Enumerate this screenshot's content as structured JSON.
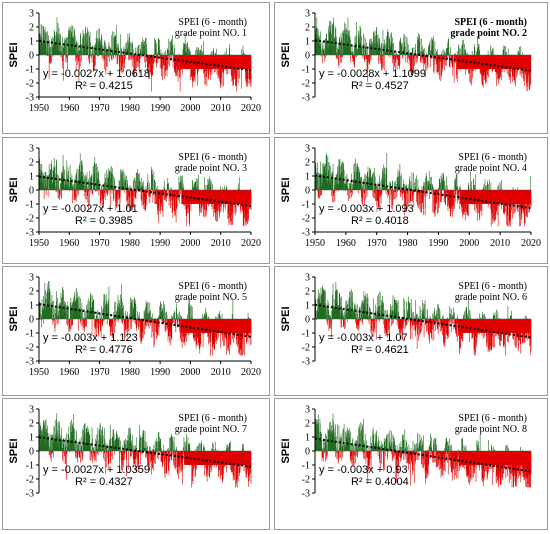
{
  "chart_data": [
    {
      "type": "bar",
      "title": "SPEI  (6 - month)",
      "subtitle": "grade point NO. 1",
      "title_bold": false,
      "ylabel": "SPEI",
      "ylim": [
        -3,
        3
      ],
      "yticks": [
        -3,
        -2,
        -1,
        0,
        1,
        2,
        3
      ],
      "xlim": [
        1950,
        2020
      ],
      "xticks": [
        1950,
        1960,
        1970,
        1980,
        1990,
        2000,
        2010,
        2020
      ],
      "grid": false,
      "trend": {
        "slope": -0.0027,
        "intercept": 1.0618
      },
      "equation": "y = -0.0027x + 1.0618",
      "r2": "R² = 0.4215",
      "colors": {
        "positive": "#1f6b1f",
        "negative": "#e00000",
        "trend": "#000000"
      },
      "series_wet_until": 1997
    },
    {
      "type": "bar",
      "title": "SPEI  (6 - month)",
      "subtitle": "grade point NO. 2",
      "title_bold": true,
      "ylabel": "SPEI",
      "ylim": [
        -3,
        3
      ],
      "yticks": [
        -3,
        -2,
        -1,
        0,
        1,
        2,
        3
      ],
      "xlim": [
        1950,
        2020
      ],
      "xticks": [],
      "grid": false,
      "trend": {
        "slope": -0.0028,
        "intercept": 1.1099
      },
      "equation": "y = -0.0028x + 1.1099",
      "r2": "R² = 0.4527",
      "colors": {
        "positive": "#1f6b1f",
        "negative": "#e00000",
        "trend": "#000000"
      },
      "series_wet_until": 1996
    },
    {
      "type": "bar",
      "title": "SPEI  (6 - month)",
      "subtitle": "grade point NO. 3",
      "title_bold": false,
      "ylabel": "SPEI",
      "ylim": [
        -3,
        3
      ],
      "yticks": [
        -3,
        -2,
        -1,
        0,
        1,
        2,
        3
      ],
      "xlim": [
        1950,
        2020
      ],
      "xticks": [
        1950,
        1960,
        1970,
        1980,
        1990,
        2000,
        2010,
        2020
      ],
      "grid": false,
      "trend": {
        "slope": -0.0027,
        "intercept": 1.01
      },
      "equation": "y = -0.0027x + 1.01",
      "r2": "R² = 0.3985",
      "colors": {
        "positive": "#1f6b1f",
        "negative": "#e00000",
        "trend": "#000000"
      },
      "series_wet_until": 1997
    },
    {
      "type": "bar",
      "title": "SPEI  (6 - month)",
      "subtitle": "grade point NO. 4",
      "title_bold": false,
      "ylabel": "SPEI",
      "ylim": [
        -3,
        3
      ],
      "yticks": [
        -3,
        -2,
        -1,
        0,
        1,
        2,
        3
      ],
      "xlim": [
        1950,
        2020
      ],
      "xticks": [
        1950,
        1960,
        1970,
        1980,
        1990,
        2000,
        2010,
        2020
      ],
      "grid": false,
      "trend": {
        "slope": -0.003,
        "intercept": 1.093
      },
      "equation": "y = -0.003x + 1.093",
      "r2": "R² = 0.4018",
      "colors": {
        "positive": "#1f6b1f",
        "negative": "#e00000",
        "trend": "#000000"
      },
      "series_wet_until": 1997
    },
    {
      "type": "bar",
      "title": "SPEI  (6 - month)",
      "subtitle": "grade point NO. 5",
      "title_bold": false,
      "ylabel": "SPEI",
      "ylim": [
        -3,
        3
      ],
      "yticks": [
        -3,
        -2,
        -1,
        0,
        1,
        2,
        3
      ],
      "xlim": [
        1950,
        2020
      ],
      "xticks": [
        1950,
        1960,
        1970,
        1980,
        1990,
        2000,
        2010,
        2020
      ],
      "grid": false,
      "trend": {
        "slope": -0.003,
        "intercept": 1.123
      },
      "equation": "y = -0.003x + 1.123",
      "r2": "R² = 0.4776",
      "colors": {
        "positive": "#1f6b1f",
        "negative": "#e00000",
        "trend": "#000000"
      },
      "series_wet_until": 1997
    },
    {
      "type": "bar",
      "title": "SPEI  (6 - month)",
      "subtitle": "grade point NO. 6",
      "title_bold": false,
      "ylabel": "SPEI",
      "ylim": [
        -3,
        3
      ],
      "yticks": [
        -3,
        -2,
        -1,
        0,
        1,
        2,
        3
      ],
      "xlim": [
        1950,
        2020
      ],
      "xticks": [],
      "grid": false,
      "trend": {
        "slope": -0.003,
        "intercept": 1.07
      },
      "equation": "y = -0.003x + 1.07",
      "r2": "R² = 0.4621",
      "colors": {
        "positive": "#1f6b1f",
        "negative": "#e00000",
        "trend": "#000000"
      },
      "series_wet_until": 1997
    },
    {
      "type": "bar",
      "title": "SPEI  (6 - month)",
      "subtitle": "grade point NO. 7",
      "title_bold": false,
      "ylabel": "SPEI",
      "ylim": [
        -3,
        3
      ],
      "yticks": [
        -3,
        -2,
        -1,
        0,
        1,
        2,
        3
      ],
      "xlim": [
        1950,
        2020
      ],
      "xticks": [],
      "grid": false,
      "trend": {
        "slope": -0.0027,
        "intercept": 1.0359
      },
      "equation": "y = -0.0027x + 1.0359",
      "r2": "R² = 0.4327",
      "colors": {
        "positive": "#1f6b1f",
        "negative": "#e00000",
        "trend": "#000000"
      },
      "series_wet_until": 1998
    },
    {
      "type": "bar",
      "title": "SPEI  (6 - month)",
      "subtitle": "grade point NO. 8",
      "title_bold": false,
      "ylabel": "SPEI",
      "ylim": [
        -3,
        3
      ],
      "yticks": [
        -3,
        -2,
        -1,
        0,
        1,
        2,
        3
      ],
      "xlim": [
        1950,
        2020
      ],
      "xticks": [],
      "grid": false,
      "trend": {
        "slope": -0.003,
        "intercept": 0.93
      },
      "equation": "y = -0.003x + 0.93",
      "r2": "R² = 0.4004",
      "colors": {
        "positive": "#1f6b1f",
        "negative": "#e00000",
        "trend": "#000000"
      },
      "series_wet_until": 1997
    }
  ]
}
